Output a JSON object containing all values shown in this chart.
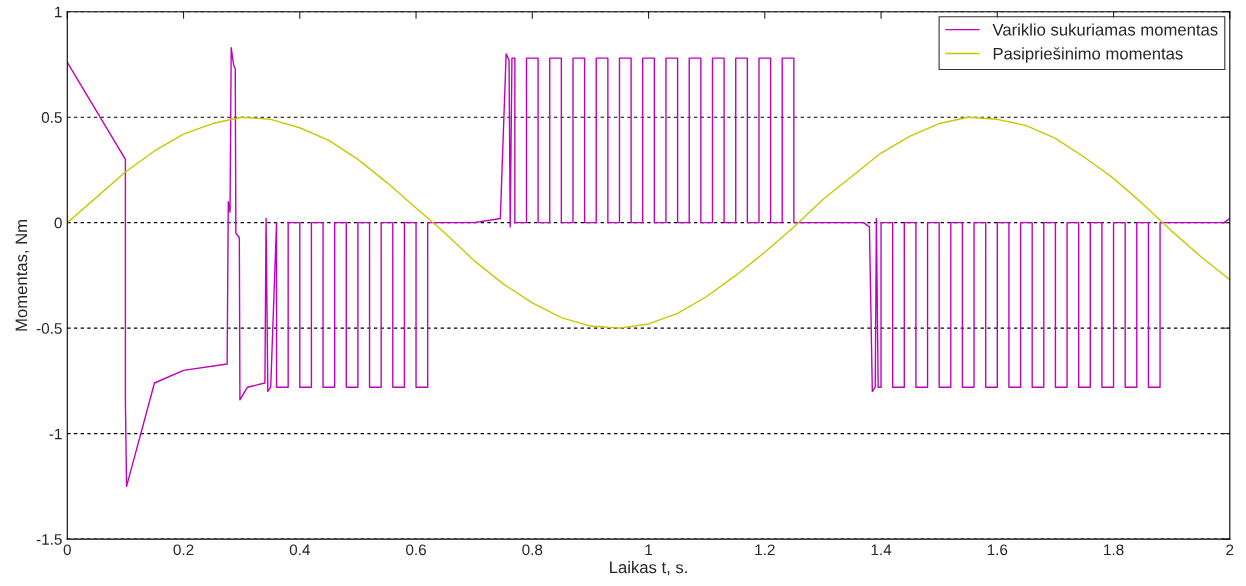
{
  "chart_data": {
    "type": "line",
    "xlabel": "Laikas t, s.",
    "ylabel": "Momentas, Nm",
    "xlim": [
      0,
      2
    ],
    "xticks": [
      0,
      0.2,
      0.4,
      0.6,
      0.8,
      1,
      1.2,
      1.4,
      1.6,
      1.8,
      2
    ],
    "ylim": [
      -1.5,
      1
    ],
    "yticks": [
      -1.5,
      -1,
      -0.5,
      0,
      0.5,
      1
    ],
    "grid": "y",
    "legend": "top right",
    "series": [
      {
        "name": "Variklio sukuriamas momentas",
        "color": "#bf00bf",
        "x": [
          0,
          0.05,
          0.1,
          0.1,
          0.102,
          0.15,
          0.2,
          0.275,
          0.277,
          0.28,
          0.282,
          0.286,
          0.289,
          0.29,
          0.296,
          0.297,
          0.31,
          0.34,
          0.342,
          0.345,
          0.35,
          0.36,
          0.36,
          0.38,
          0.38,
          0.4,
          0.4,
          0.42,
          0.42,
          0.44,
          0.44,
          0.46,
          0.46,
          0.48,
          0.48,
          0.5,
          0.5,
          0.52,
          0.52,
          0.54,
          0.54,
          0.56,
          0.56,
          0.58,
          0.58,
          0.6,
          0.6,
          0.62,
          0.62,
          0.7,
          0.745,
          0.755,
          0.76,
          0.762,
          0.765,
          0.77,
          0.77,
          0.79,
          0.79,
          0.81,
          0.81,
          0.83,
          0.83,
          0.85,
          0.85,
          0.87,
          0.87,
          0.89,
          0.89,
          0.91,
          0.91,
          0.93,
          0.93,
          0.95,
          0.95,
          0.97,
          0.97,
          0.99,
          0.99,
          1.01,
          1.01,
          1.03,
          1.03,
          1.05,
          1.05,
          1.07,
          1.07,
          1.09,
          1.09,
          1.11,
          1.11,
          1.13,
          1.13,
          1.15,
          1.15,
          1.17,
          1.17,
          1.19,
          1.19,
          1.21,
          1.21,
          1.23,
          1.23,
          1.25,
          1.25,
          1.37,
          1.38,
          1.385,
          1.39,
          1.392,
          1.395,
          1.4,
          1.4,
          1.42,
          1.42,
          1.44,
          1.44,
          1.46,
          1.46,
          1.48,
          1.48,
          1.5,
          1.5,
          1.52,
          1.52,
          1.54,
          1.54,
          1.56,
          1.56,
          1.58,
          1.58,
          1.6,
          1.6,
          1.62,
          1.62,
          1.64,
          1.64,
          1.66,
          1.66,
          1.68,
          1.68,
          1.7,
          1.7,
          1.72,
          1.72,
          1.74,
          1.74,
          1.76,
          1.76,
          1.78,
          1.78,
          1.8,
          1.8,
          1.82,
          1.82,
          1.84,
          1.84,
          1.86,
          1.86,
          1.88,
          1.88,
          1.99,
          2
        ],
        "values": [
          0.76,
          0.53,
          0.3,
          -0.85,
          -1.25,
          -0.76,
          -0.7,
          -0.67,
          0.1,
          0.05,
          0.83,
          0.75,
          0.73,
          -0.05,
          -0.07,
          -0.84,
          -0.78,
          -0.76,
          0.02,
          -0.8,
          -0.78,
          0,
          -0.78,
          -0.78,
          0,
          0,
          -0.78,
          -0.78,
          0,
          0,
          -0.78,
          -0.78,
          0,
          0,
          -0.78,
          -0.78,
          0,
          0,
          -0.78,
          -0.78,
          0,
          0,
          -0.78,
          -0.78,
          0,
          0,
          -0.78,
          -0.78,
          0,
          0,
          0.02,
          0.8,
          0.77,
          -0.02,
          0.78,
          0.78,
          0,
          0,
          0.78,
          0.78,
          0,
          0,
          0.78,
          0.78,
          0,
          0,
          0.78,
          0.78,
          0,
          0,
          0.78,
          0.78,
          0,
          0,
          0.78,
          0.78,
          0,
          0,
          0.78,
          0.78,
          0,
          0,
          0.78,
          0.78,
          0,
          0,
          0.78,
          0.78,
          0,
          0,
          0.78,
          0.78,
          0,
          0,
          0.78,
          0.78,
          0,
          0,
          0.78,
          0.78,
          0,
          0,
          0.78,
          0.78,
          0,
          0,
          -0.02,
          -0.8,
          -0.78,
          0.02,
          -0.78,
          -0.78,
          0,
          0,
          -0.78,
          -0.78,
          0,
          0,
          -0.78,
          -0.78,
          0,
          0,
          -0.78,
          -0.78,
          0,
          0,
          -0.78,
          -0.78,
          0,
          0,
          -0.78,
          -0.78,
          0,
          0,
          -0.78,
          -0.78,
          0,
          0,
          -0.78,
          -0.78,
          0,
          0,
          -0.78,
          -0.78,
          0,
          0,
          -0.78,
          -0.78,
          0,
          0,
          -0.78,
          -0.78,
          0,
          0,
          -0.78,
          -0.78,
          0,
          0,
          -0.78,
          -0.78,
          0,
          0,
          0.02
        ]
      },
      {
        "name": "Pasipriešinimo momentas",
        "color": "#c8c800",
        "x": [
          0,
          0.05,
          0.1,
          0.15,
          0.2,
          0.25,
          0.3,
          0.35,
          0.4,
          0.45,
          0.5,
          0.55,
          0.6,
          0.65,
          0.7,
          0.75,
          0.8,
          0.85,
          0.9,
          0.95,
          1,
          1.05,
          1.1,
          1.15,
          1.2,
          1.25,
          1.3,
          1.35,
          1.4,
          1.45,
          1.5,
          1.55,
          1.6,
          1.65,
          1.7,
          1.75,
          1.8,
          1.85,
          1.9,
          1.95,
          2
        ],
        "values": [
          0,
          0.12,
          0.24,
          0.34,
          0.42,
          0.47,
          0.5,
          0.49,
          0.45,
          0.39,
          0.3,
          0.19,
          0.07,
          -0.05,
          -0.18,
          -0.29,
          -0.38,
          -0.45,
          -0.49,
          -0.5,
          -0.48,
          -0.43,
          -0.35,
          -0.25,
          -0.14,
          -0.02,
          0.11,
          0.22,
          0.33,
          0.41,
          0.47,
          0.5,
          0.49,
          0.46,
          0.4,
          0.31,
          0.21,
          0.09,
          -0.04,
          -0.16,
          -0.27
        ]
      }
    ]
  }
}
